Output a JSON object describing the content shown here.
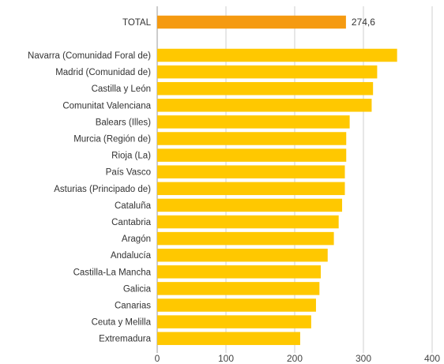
{
  "chart_data": {
    "type": "bar",
    "orientation": "horizontal",
    "total": {
      "label": "TOTAL",
      "value": 274.6,
      "value_label": "274,6",
      "color": "#F59A10"
    },
    "categories": [
      "Navarra (Comunidad Foral de)",
      "Madrid (Comunidad de)",
      "Castilla y León",
      "Comunitat Valenciana",
      "Balears (Illes)",
      "Murcia (Región de)",
      "Rioja (La)",
      "País Vasco",
      "Asturias (Principado de)",
      "Cataluña",
      "Cantabria",
      "Aragón",
      "Andalucía",
      "Castilla-La Mancha",
      "Galicia",
      "Canarias",
      "Ceuta y Melilla",
      "Extremadura"
    ],
    "values": [
      349,
      320,
      314,
      312,
      280,
      275,
      275,
      273,
      273,
      269,
      264,
      257,
      248,
      238,
      236,
      231,
      224,
      208
    ],
    "bar_color": "#FFC800",
    "xlim": [
      0,
      400
    ],
    "xticks": [
      0,
      100,
      200,
      300,
      400
    ],
    "xtick_labels": [
      "0",
      "100",
      "200",
      "300",
      "400"
    ],
    "grid": true,
    "legend": "none"
  }
}
